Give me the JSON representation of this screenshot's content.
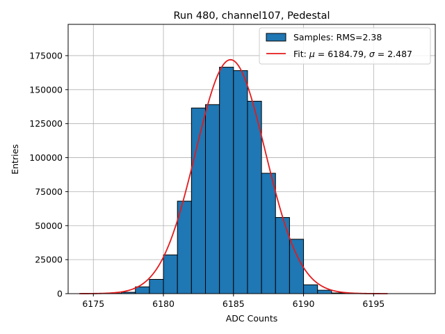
{
  "chart_data": {
    "type": "bar",
    "title": "Run 480, channel107, Pedestal",
    "xlabel": "ADC Counts",
    "ylabel": "Entries",
    "xlim": [
      6173.2,
      6199.4
    ],
    "ylim": [
      0,
      198000
    ],
    "xticks": [
      6175,
      6180,
      6185,
      6190,
      6195
    ],
    "yticks": [
      0,
      25000,
      50000,
      75000,
      100000,
      125000,
      150000,
      175000
    ],
    "grid": true,
    "legend_position": "top-right",
    "legend": {
      "samples_label": "Samples: RMS=2.38",
      "fit_label_prefix": "Fit: ",
      "fit_mu_symbol": "μ",
      "fit_mu_text": " = 6184.79, ",
      "fit_sigma_symbol": "σ",
      "fit_sigma_text": " = 2.487"
    },
    "histogram": {
      "bin_width": 1,
      "bin_edges_start": 6176,
      "counts": [
        200,
        1000,
        5000,
        10500,
        28500,
        68000,
        136500,
        139000,
        166500,
        164000,
        141500,
        88500,
        56000,
        40000,
        6500,
        2500,
        500,
        100,
        0,
        0,
        0,
        0
      ],
      "color": "#1f77b4"
    },
    "fit": {
      "mu": 6184.79,
      "sigma": 2.487,
      "amplitude": 172000,
      "x_range": [
        6174,
        6196
      ],
      "color": "#e41a1c"
    }
  }
}
